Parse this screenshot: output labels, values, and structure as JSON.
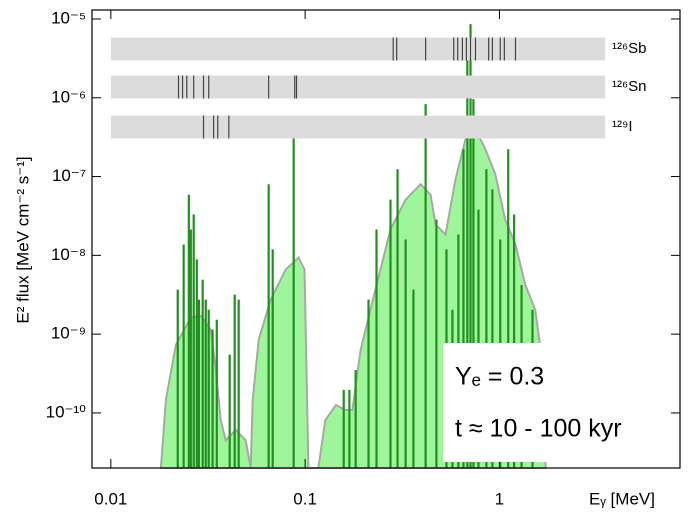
{
  "chart_data": {
    "type": "spectrum",
    "xlabel": "Eᵧ [MeV]",
    "ylabel": "E² flux [MeV cm⁻² s⁻¹]",
    "log_x": true,
    "log_y": true,
    "xlim": [
      0.008,
      8.5
    ],
    "ylim": [
      2e-11,
      1.3e-05
    ],
    "xticks": [
      0.01,
      0.1,
      1
    ],
    "yticks": [
      {
        "value": 1e-10,
        "label": "10⁻¹⁰"
      },
      {
        "value": 1e-09,
        "label": "10⁻⁹"
      },
      {
        "value": 1e-08,
        "label": "10⁻⁸"
      },
      {
        "value": 1e-07,
        "label": "10⁻⁷"
      },
      {
        "value": 1e-06,
        "label": "10⁻⁶"
      },
      {
        "value": 1e-05,
        "label": "10⁻⁵"
      }
    ],
    "envelope": {
      "color": "#9ff59a",
      "edge": "#a8a8a8",
      "x": [
        0.0181,
        0.0192,
        0.0216,
        0.0258,
        0.029,
        0.0327,
        0.0347,
        0.0368,
        0.039,
        0.0439,
        0.0494,
        0.0525,
        0.0537,
        0.0577,
        0.0665,
        0.0794,
        0.0926,
        0.0993,
        0.104,
        0.117,
        0.127,
        0.144,
        0.161,
        0.175,
        0.193,
        0.23,
        0.275,
        0.329,
        0.393,
        0.442,
        0.469,
        0.528,
        0.594,
        0.669,
        0.753,
        0.847,
        0.953,
        1.07,
        1.21,
        1.36,
        1.53,
        1.63,
        1.73
      ],
      "values": [
        2e-11,
        1.46e-10,
        7.3e-10,
        1.62e-09,
        1.71e-09,
        1.14e-09,
        3.5e-10,
        8.1e-11,
        4.5e-11,
        6.1e-11,
        4.5e-11,
        2e-11,
        1.46e-10,
        8.5e-10,
        2.74e-09,
        6.6e-09,
        9.4e-09,
        6.6e-09,
        2e-11,
        2e-11,
        8.1e-11,
        1.26e-10,
        1.09e-10,
        1.09e-10,
        6.3e-10,
        3.67e-09,
        2.13e-08,
        5.1e-08,
        8e-08,
        5.9e-08,
        2.47e-08,
        1.84e-08,
        9.2e-08,
        2.97e-07,
        4e-07,
        2.22e-07,
        1.07e-07,
        2.85e-08,
        1.37e-08,
        4.2e-09,
        2.04e-09,
        6.3e-10,
        2e-11
      ]
    },
    "lines": {
      "color": "#1f8f1f",
      "x": [
        0.0221,
        0.0237,
        0.0252,
        0.0258,
        0.0267,
        0.0277,
        0.0284,
        0.0297,
        0.0308,
        0.0319,
        0.0334,
        0.0351,
        0.0409,
        0.0434,
        0.0455,
        0.0649,
        0.0681,
        0.0873,
        0.158,
        0.169,
        0.182,
        0.212,
        0.233,
        0.275,
        0.299,
        0.329,
        0.361,
        0.417,
        0.474,
        0.534,
        0.573,
        0.615,
        0.653,
        0.684,
        0.71,
        0.735,
        0.78,
        0.857,
        0.92,
        1.01,
        1.11,
        1.19,
        1.3,
        1.48
      ],
      "values": [
        3.67e-09,
        1.37e-08,
        5.9e-08,
        2.13e-08,
        3.3e-08,
        8.9e-09,
        2.74e-09,
        4.9e-09,
        2.74e-09,
        2.04e-09,
        1.14e-09,
        1.52e-09,
        5.5e-10,
        3.17e-09,
        2.74e-09,
        8e-08,
        1.19e-08,
        4.6e-07,
        1.96e-10,
        1.96e-10,
        3.5e-10,
        2.74e-09,
        2.13e-08,
        5.1e-08,
        1.24e-07,
        1.59e-08,
        3.67e-09,
        8.3e-07,
        2.85e-08,
        1.19e-08,
        2.04e-09,
        1.84e-08,
        2.22e-07,
        4.15e-06,
        8.6e-06,
        9.6e-07,
        3.8e-08,
        1.24e-07,
        6.9e-08,
        1.59e-08,
        2.22e-07,
        3.3e-08,
        4.2e-09,
        2.04e-09
      ]
    },
    "isotope_range": [
      0.01,
      3.5
    ],
    "isotopes": [
      {
        "name": "¹²⁶Sb",
        "lines": [
          0.284,
          0.296,
          0.417,
          0.582,
          0.61,
          0.645,
          0.676,
          0.71,
          0.753,
          0.88,
          0.92,
          1.01,
          1.06,
          1.21
        ]
      },
      {
        "name": "¹²⁶Sn",
        "lines": [
          0.0223,
          0.0234,
          0.0246,
          0.0267,
          0.03,
          0.0319,
          0.0649,
          0.0884,
          0.0903
        ]
      },
      {
        "name": "¹²⁹I",
        "lines": [
          0.03,
          0.0338,
          0.0355,
          0.0405
        ]
      }
    ],
    "annotations": [
      "Yₑ = 0.3",
      "t ≈ 10 - 100 kyr"
    ]
  }
}
